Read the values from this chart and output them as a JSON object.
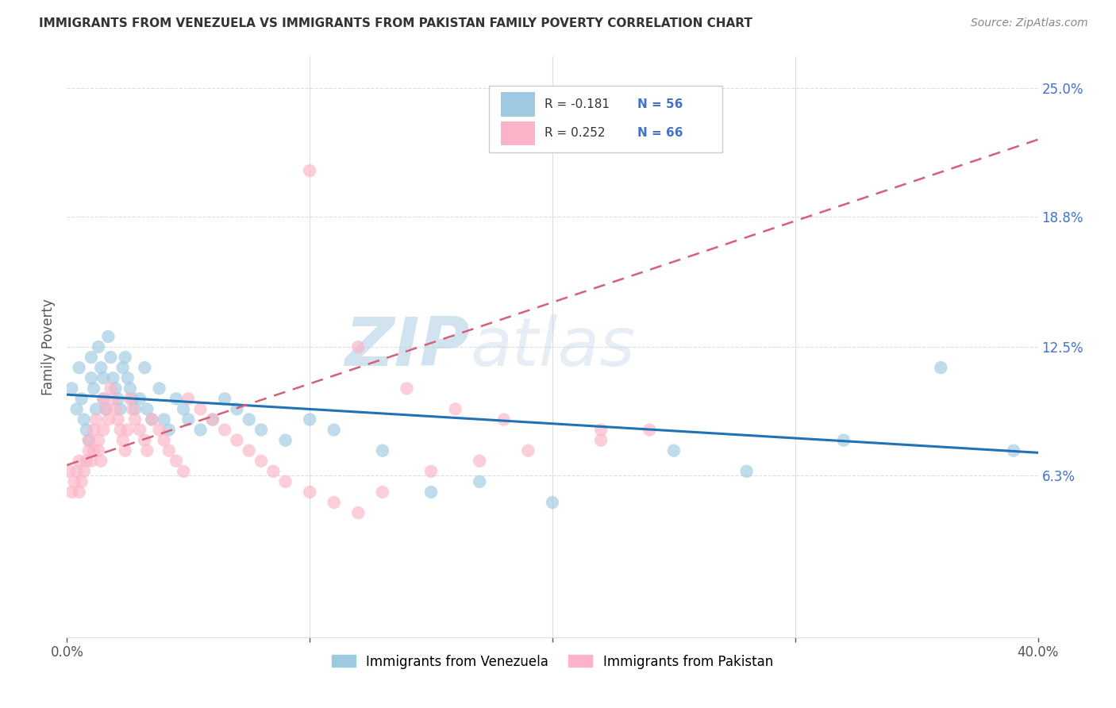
{
  "title": "IMMIGRANTS FROM VENEZUELA VS IMMIGRANTS FROM PAKISTAN FAMILY POVERTY CORRELATION CHART",
  "source": "Source: ZipAtlas.com",
  "ylabel": "Family Poverty",
  "yticks": [
    0.0,
    0.063,
    0.125,
    0.188,
    0.25
  ],
  "ytick_labels": [
    "",
    "6.3%",
    "12.5%",
    "18.8%",
    "25.0%"
  ],
  "xlim": [
    0.0,
    0.4
  ],
  "ylim": [
    -0.015,
    0.265
  ],
  "legend_r1": "R = -0.181",
  "legend_n1": "N = 56",
  "legend_r2": "R = 0.252",
  "legend_n2": "N = 66",
  "legend_label1": "Immigrants from Venezuela",
  "legend_label2": "Immigrants from Pakistan",
  "color_venezuela": "#9ecae1",
  "color_pakistan": "#fbb4c7",
  "color_line_venezuela": "#2171b5",
  "color_line_pakistan": "#d4607a",
  "color_ytick": "#4472c4",
  "watermark_zip": "ZIP",
  "watermark_atlas": "atlas",
  "venezuela_x": [
    0.002,
    0.004,
    0.005,
    0.006,
    0.007,
    0.008,
    0.009,
    0.01,
    0.01,
    0.011,
    0.012,
    0.013,
    0.014,
    0.015,
    0.015,
    0.016,
    0.017,
    0.018,
    0.019,
    0.02,
    0.021,
    0.022,
    0.023,
    0.024,
    0.025,
    0.026,
    0.027,
    0.028,
    0.03,
    0.032,
    0.033,
    0.035,
    0.038,
    0.04,
    0.042,
    0.045,
    0.048,
    0.05,
    0.055,
    0.06,
    0.065,
    0.07,
    0.075,
    0.08,
    0.09,
    0.1,
    0.11,
    0.13,
    0.15,
    0.17,
    0.2,
    0.25,
    0.28,
    0.32,
    0.36,
    0.39
  ],
  "venezuela_y": [
    0.105,
    0.095,
    0.115,
    0.1,
    0.09,
    0.085,
    0.08,
    0.12,
    0.11,
    0.105,
    0.095,
    0.125,
    0.115,
    0.11,
    0.1,
    0.095,
    0.13,
    0.12,
    0.11,
    0.105,
    0.1,
    0.095,
    0.115,
    0.12,
    0.11,
    0.105,
    0.1,
    0.095,
    0.1,
    0.115,
    0.095,
    0.09,
    0.105,
    0.09,
    0.085,
    0.1,
    0.095,
    0.09,
    0.085,
    0.09,
    0.1,
    0.095,
    0.09,
    0.085,
    0.08,
    0.09,
    0.085,
    0.075,
    0.055,
    0.06,
    0.05,
    0.075,
    0.065,
    0.08,
    0.115,
    0.075
  ],
  "pakistan_x": [
    0.001,
    0.002,
    0.003,
    0.004,
    0.005,
    0.005,
    0.006,
    0.007,
    0.008,
    0.009,
    0.009,
    0.01,
    0.011,
    0.011,
    0.012,
    0.013,
    0.013,
    0.014,
    0.015,
    0.015,
    0.016,
    0.017,
    0.018,
    0.019,
    0.02,
    0.021,
    0.022,
    0.023,
    0.024,
    0.025,
    0.026,
    0.027,
    0.028,
    0.03,
    0.032,
    0.033,
    0.035,
    0.038,
    0.04,
    0.042,
    0.045,
    0.048,
    0.05,
    0.055,
    0.06,
    0.065,
    0.07,
    0.075,
    0.08,
    0.085,
    0.09,
    0.1,
    0.11,
    0.12,
    0.13,
    0.15,
    0.17,
    0.19,
    0.22,
    0.24,
    0.1,
    0.12,
    0.14,
    0.16,
    0.18,
    0.22
  ],
  "pakistan_y": [
    0.065,
    0.055,
    0.06,
    0.065,
    0.07,
    0.055,
    0.06,
    0.065,
    0.07,
    0.075,
    0.08,
    0.07,
    0.075,
    0.085,
    0.09,
    0.08,
    0.075,
    0.07,
    0.085,
    0.1,
    0.095,
    0.09,
    0.105,
    0.1,
    0.095,
    0.09,
    0.085,
    0.08,
    0.075,
    0.085,
    0.1,
    0.095,
    0.09,
    0.085,
    0.08,
    0.075,
    0.09,
    0.085,
    0.08,
    0.075,
    0.07,
    0.065,
    0.1,
    0.095,
    0.09,
    0.085,
    0.08,
    0.075,
    0.07,
    0.065,
    0.06,
    0.055,
    0.05,
    0.045,
    0.055,
    0.065,
    0.07,
    0.075,
    0.08,
    0.085,
    0.21,
    0.125,
    0.105,
    0.095,
    0.09,
    0.085
  ],
  "line_ven_x0": 0.0,
  "line_ven_y0": 0.102,
  "line_ven_x1": 0.4,
  "line_ven_y1": 0.074,
  "line_pak_x0": 0.0,
  "line_pak_y0": 0.068,
  "line_pak_x1": 0.4,
  "line_pak_y1": 0.225
}
